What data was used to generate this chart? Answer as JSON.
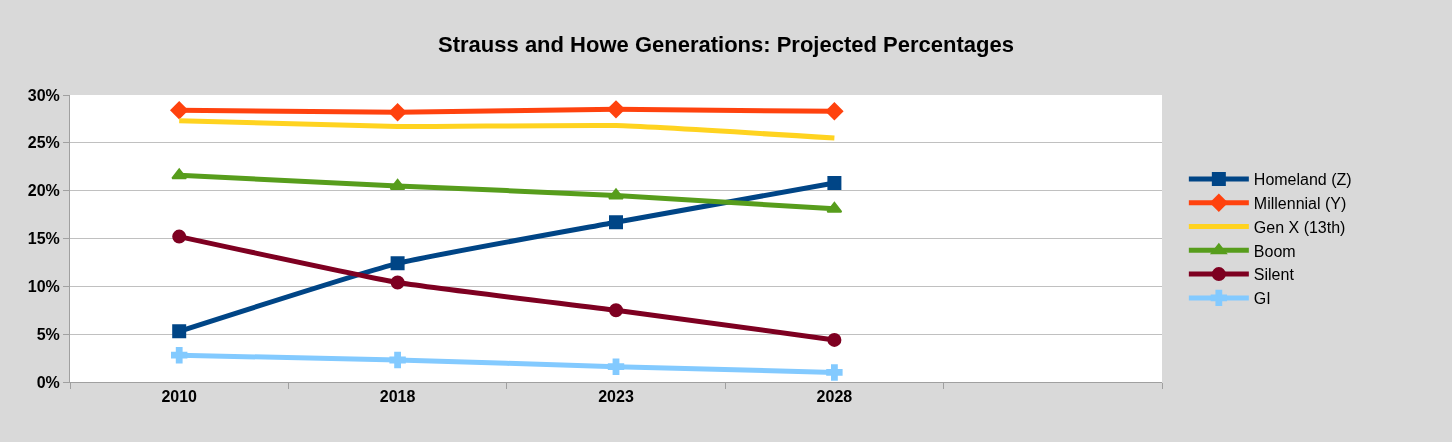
{
  "chart_data": {
    "type": "line",
    "title": "Strauss and Howe Generations: Projected Percentages",
    "categories": [
      "2010",
      "2018",
      "2023",
      "2028",
      null
    ],
    "ylim": [
      0,
      30
    ],
    "yticks": [
      {
        "value": 0,
        "label": "0%"
      },
      {
        "value": 5,
        "label": "5%"
      },
      {
        "value": 10,
        "label": "10%"
      },
      {
        "value": 15,
        "label": "15%"
      },
      {
        "value": 20,
        "label": "20%"
      },
      {
        "value": 25,
        "label": "25%"
      },
      {
        "value": 30,
        "label": "30%"
      }
    ],
    "grid": "y",
    "legend": "right",
    "series": [
      {
        "name": "Homeland (Z)",
        "color": "#004586",
        "marker": "square",
        "values": [
          5.3,
          12.4,
          16.7,
          20.8,
          null
        ]
      },
      {
        "name": "Millennial (Y)",
        "color": "#ff420e",
        "marker": "diamond",
        "values": [
          28.4,
          28.2,
          28.5,
          28.3,
          null
        ]
      },
      {
        "name": "Gen X (13th)",
        "color": "#ffd320",
        "marker": "none",
        "values": [
          27.3,
          26.7,
          26.8,
          25.5,
          null
        ]
      },
      {
        "name": "Boom",
        "color": "#579d1c",
        "marker": "triangle",
        "values": [
          21.6,
          20.5,
          19.5,
          18.1,
          null
        ]
      },
      {
        "name": "Silent",
        "color": "#7e0021",
        "marker": "circle",
        "values": [
          15.2,
          10.4,
          7.5,
          4.4,
          null
        ]
      },
      {
        "name": "GI",
        "color": "#83caff",
        "marker": "cross",
        "values": [
          2.8,
          2.3,
          1.6,
          1.0,
          null
        ]
      }
    ]
  }
}
